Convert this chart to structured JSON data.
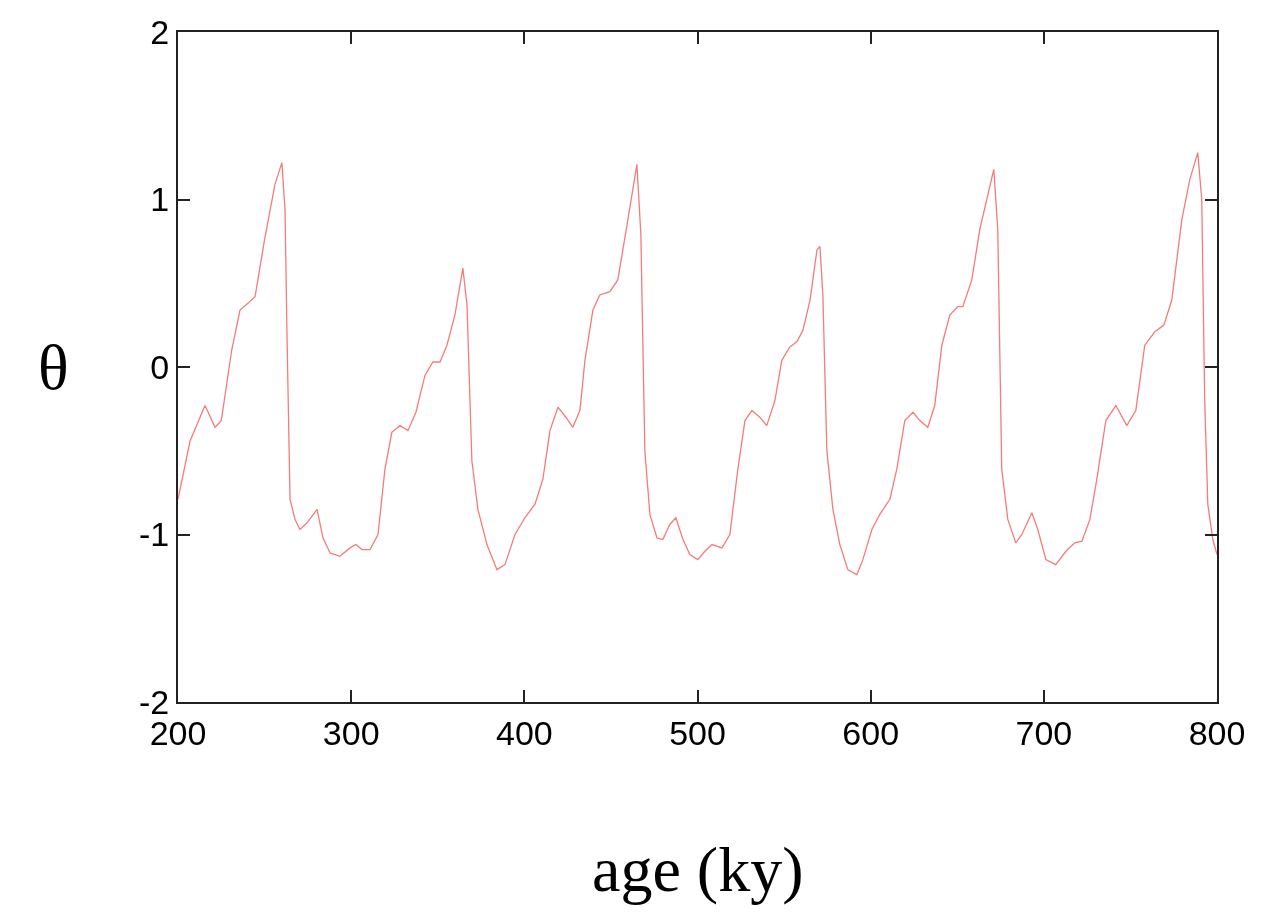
{
  "chart_data": {
    "type": "line",
    "xlabel": "age (ky)",
    "ylabel": "θ",
    "xlim": [
      200,
      800
    ],
    "ylim": [
      -2,
      2
    ],
    "xticks": [
      200,
      300,
      400,
      500,
      600,
      700,
      800
    ],
    "yticks": [
      -2,
      -1,
      0,
      1,
      2
    ],
    "grid": false,
    "marker": "none",
    "line_style": "solid",
    "x": [
      200,
      207,
      215.6,
      221.4,
      225,
      231,
      235.8,
      240.4,
      244.5,
      250,
      256,
      260,
      261.8,
      262.9,
      264.7,
      267.6,
      270.4,
      274.5,
      280.3,
      283.7,
      287.8,
      293.5,
      299.3,
      302.8,
      306.2,
      310.9,
      315.5,
      319.5,
      323.5,
      328.2,
      332.8,
      337.4,
      342.6,
      347.2,
      351.3,
      355.3,
      359.9,
      364.5,
      366.9,
      369.7,
      373.2,
      378.4,
      384.2,
      388.8,
      394.6,
      400.3,
      406.1,
      410.7,
      414.8,
      419.4,
      424,
      428,
      432.1,
      435,
      439.6,
      443.6,
      449.4,
      454,
      459.8,
      465,
      467.3,
      469.6,
      472.5,
      476.6,
      480,
      484,
      487.5,
      491.6,
      495.6,
      500.2,
      504.3,
      508.3,
      514.1,
      518.7,
      523.3,
      527.4,
      531.4,
      536,
      540,
      544.7,
      548.7,
      553.3,
      557.4,
      560.9,
      565,
      569,
      570.7,
      572.4,
      574.7,
      578.2,
      582.2,
      586.8,
      592,
      595.5,
      600.7,
      605.3,
      611.1,
      615.1,
      619.7,
      624.4,
      628.4,
      633,
      637,
      641.1,
      645.7,
      650.3,
      653.2,
      658.4,
      663,
      671.1,
      673.4,
      675.7,
      679.2,
      683.8,
      687.3,
      693.1,
      696.5,
      701.2,
      706.9,
      712.7,
      717.9,
      722,
      726.6,
      730.6,
      735.8,
      741.6,
      747.9,
      753.1,
      758.3,
      764.1,
      769.3,
      773.9,
      779.7,
      784.3,
      788.9,
      791.2,
      792.9,
      794.7,
      797.6,
      800
    ],
    "series": [
      {
        "color": "#f47c7c",
        "values": [
          -0.79,
          -0.44,
          -0.23,
          -0.36,
          -0.32,
          0.1,
          0.34,
          0.38,
          0.42,
          0.76,
          1.09,
          1.22,
          0.94,
          0.22,
          -0.79,
          -0.91,
          -0.97,
          -0.93,
          -0.85,
          -1.02,
          -1.11,
          -1.13,
          -1.08,
          -1.06,
          -1.09,
          -1.09,
          -1.0,
          -0.61,
          -0.39,
          -0.35,
          -0.38,
          -0.27,
          -0.05,
          0.03,
          0.03,
          0.13,
          0.31,
          0.59,
          0.37,
          -0.56,
          -0.85,
          -1.06,
          -1.21,
          -1.18,
          -1.0,
          -0.9,
          -0.82,
          -0.67,
          -0.38,
          -0.24,
          -0.3,
          -0.36,
          -0.26,
          0.04,
          0.34,
          0.43,
          0.45,
          0.52,
          0.88,
          1.21,
          0.79,
          -0.5,
          -0.88,
          -1.02,
          -1.03,
          -0.94,
          -0.9,
          -1.03,
          -1.12,
          -1.15,
          -1.1,
          -1.06,
          -1.08,
          -1.0,
          -0.61,
          -0.32,
          -0.26,
          -0.3,
          -0.35,
          -0.2,
          0.04,
          0.12,
          0.15,
          0.22,
          0.4,
          0.7,
          0.72,
          0.43,
          -0.5,
          -0.85,
          -1.06,
          -1.21,
          -1.24,
          -1.15,
          -0.97,
          -0.88,
          -0.79,
          -0.61,
          -0.32,
          -0.27,
          -0.32,
          -0.36,
          -0.23,
          0.13,
          0.31,
          0.36,
          0.36,
          0.52,
          0.82,
          1.18,
          0.82,
          -0.61,
          -0.91,
          -1.05,
          -1.0,
          -0.87,
          -0.97,
          -1.15,
          -1.18,
          -1.1,
          -1.05,
          -1.04,
          -0.91,
          -0.67,
          -0.32,
          -0.23,
          -0.35,
          -0.26,
          0.13,
          0.21,
          0.25,
          0.4,
          0.88,
          1.12,
          1.28,
          1.0,
          -0.2,
          -0.82,
          -1.03,
          -1.12
        ]
      }
    ]
  }
}
